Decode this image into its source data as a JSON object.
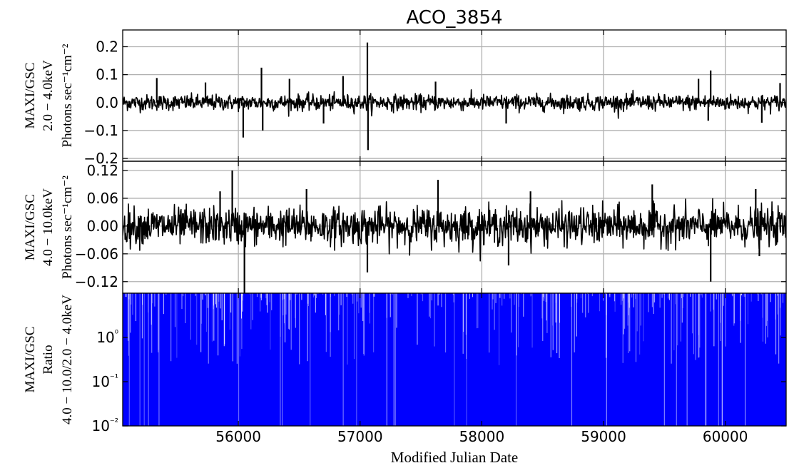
{
  "chart_data": {
    "type": "line",
    "title": "ACO_3854",
    "xlabel": "Modified Julian Date",
    "xlim": [
      55050,
      60500
    ],
    "xticks": [
      56000,
      57000,
      58000,
      59000,
      60000
    ],
    "x_tick_labels": [
      "56000",
      "57000",
      "58000",
      "59000",
      "60000"
    ],
    "grid": true,
    "panels": [
      {
        "name": "soft",
        "ylabel_lines": [
          "MAXI/GSC",
          "2.0 − 4.0keV",
          "Photons sec⁻¹cm⁻²"
        ],
        "ylim": [
          -0.21,
          0.26
        ],
        "yticks": [
          -0.2,
          -0.1,
          0.0,
          0.1,
          0.2
        ],
        "y_tick_labels": [
          "−0.2",
          "−0.1",
          "0.0",
          "0.1",
          "0.2"
        ],
        "color": "#000000",
        "noise_sigma": 0.014,
        "spikes": [
          {
            "x": 55330,
            "y": 0.088
          },
          {
            "x": 55730,
            "y": 0.072
          },
          {
            "x": 56040,
            "y": -0.125
          },
          {
            "x": 56190,
            "y": 0.125
          },
          {
            "x": 56200,
            "y": -0.1
          },
          {
            "x": 56420,
            "y": 0.085
          },
          {
            "x": 56700,
            "y": -0.075
          },
          {
            "x": 56860,
            "y": 0.095
          },
          {
            "x": 57060,
            "y": 0.215
          },
          {
            "x": 57065,
            "y": -0.17
          },
          {
            "x": 57620,
            "y": 0.075
          },
          {
            "x": 58200,
            "y": -0.075
          },
          {
            "x": 59780,
            "y": 0.085
          },
          {
            "x": 59880,
            "y": 0.115
          },
          {
            "x": 59860,
            "y": -0.065
          },
          {
            "x": 60300,
            "y": -0.072
          },
          {
            "x": 60450,
            "y": 0.07
          }
        ]
      },
      {
        "name": "hard",
        "ylabel_lines": [
          "MAXI/GSC",
          "4.0 − 10.0keV",
          "Photons sec⁻¹cm⁻²"
        ],
        "ylim": [
          -0.145,
          0.14
        ],
        "yticks": [
          -0.12,
          -0.06,
          0.0,
          0.06,
          0.12
        ],
        "y_tick_labels": [
          "−0.12",
          "−0.06",
          "0.00",
          "0.06",
          "0.12"
        ],
        "color": "#000000",
        "noise_sigma": 0.02,
        "spikes": [
          {
            "x": 55850,
            "y": 0.075
          },
          {
            "x": 55950,
            "y": 0.12
          },
          {
            "x": 56050,
            "y": -0.145
          },
          {
            "x": 56560,
            "y": 0.08
          },
          {
            "x": 57060,
            "y": -0.1
          },
          {
            "x": 57640,
            "y": 0.1
          },
          {
            "x": 58220,
            "y": -0.085
          },
          {
            "x": 58400,
            "y": 0.075
          },
          {
            "x": 59400,
            "y": 0.09
          },
          {
            "x": 59880,
            "y": -0.12
          },
          {
            "x": 60250,
            "y": 0.08
          },
          {
            "x": 60280,
            "y": -0.065
          }
        ]
      },
      {
        "name": "ratio",
        "ylabel_lines": [
          "MAXI/GSC",
          "Ratio",
          "4.0 − 10.0/2.0 − 4.0keV"
        ],
        "yscale": "log",
        "ylim": [
          0.01,
          10
        ],
        "yticks": [
          0.01,
          0.1,
          1
        ],
        "y_tick_labels": [
          "10⁻²",
          "10⁻¹",
          "10⁰"
        ],
        "color": "#0000ff"
      }
    ]
  }
}
